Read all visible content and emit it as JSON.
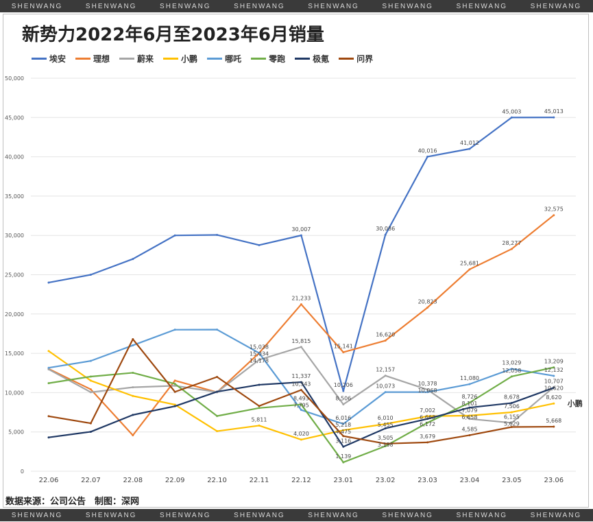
{
  "watermark": "SHENWANG",
  "chart_data": {
    "type": "line",
    "title": "新势力2022年6月至2023年6月销量",
    "categories": [
      "22.06",
      "22.07",
      "22.08",
      "22.09",
      "22.10",
      "22.11",
      "22.12",
      "23.01",
      "23.02",
      "23.03",
      "23.04",
      "23.05",
      "23.06"
    ],
    "ylim": [
      0,
      50000
    ],
    "yticks": [
      "0",
      "5,000",
      "10,000",
      "15,000",
      "20,000",
      "25,000",
      "30,000",
      "35,000",
      "40,000",
      "45,000",
      "50,000"
    ],
    "grid": true,
    "legend": "top-left",
    "series": [
      {
        "name": "埃安",
        "color": "#4472C4",
        "values": [
          24000,
          25000,
          27000,
          30000,
          30063,
          28765,
          30007,
          10206,
          30086,
          40016,
          41012,
          45003,
          45013
        ]
      },
      {
        "name": "理想",
        "color": "#ED7D31",
        "values": [
          13024,
          10422,
          4571,
          11531,
          10052,
          15034,
          21233,
          15141,
          16620,
          20823,
          25681,
          28277,
          32575
        ]
      },
      {
        "name": "蔚来",
        "color": "#A5A5A5",
        "values": [
          12961,
          10052,
          10677,
          10878,
          10059,
          14178,
          15815,
          8506,
          12157,
          10378,
          6658,
          6155,
          10707
        ]
      },
      {
        "name": "小鹏",
        "color": "#FFC000",
        "values": [
          15295,
          11524,
          9578,
          8468,
          5101,
          5811,
          4020,
          5218,
          6010,
          7002,
          7079,
          7506,
          8620
        ]
      },
      {
        "name": "哪吒",
        "color": "#5B9BD5",
        "values": [
          13157,
          14037,
          16017,
          18005,
          18016,
          15038,
          7795,
          6016,
          10073,
          10068,
          11080,
          13029,
          12132
        ]
      },
      {
        "name": "零跑",
        "color": "#70AD47",
        "values": [
          11200,
          12044,
          12525,
          11119,
          7026,
          8045,
          8493,
          1139,
          3198,
          6172,
          8726,
          12058,
          13209
        ]
      },
      {
        "name": "极氪",
        "color": "#1F3864",
        "values": [
          4302,
          5022,
          7166,
          8276,
          10119,
          11000,
          11337,
          3116,
          5455,
          6663,
          8101,
          8678,
          10620
        ]
      },
      {
        "name": "问界",
        "color": "#9E480E",
        "values": [
          7000,
          6100,
          16800,
          10100,
          12000,
          8300,
          10343,
          4475,
          3505,
          3679,
          4585,
          5629,
          5668
        ]
      }
    ],
    "end_label": "小鹏"
  },
  "source": "数据来源：公司公告　制图：深网"
}
